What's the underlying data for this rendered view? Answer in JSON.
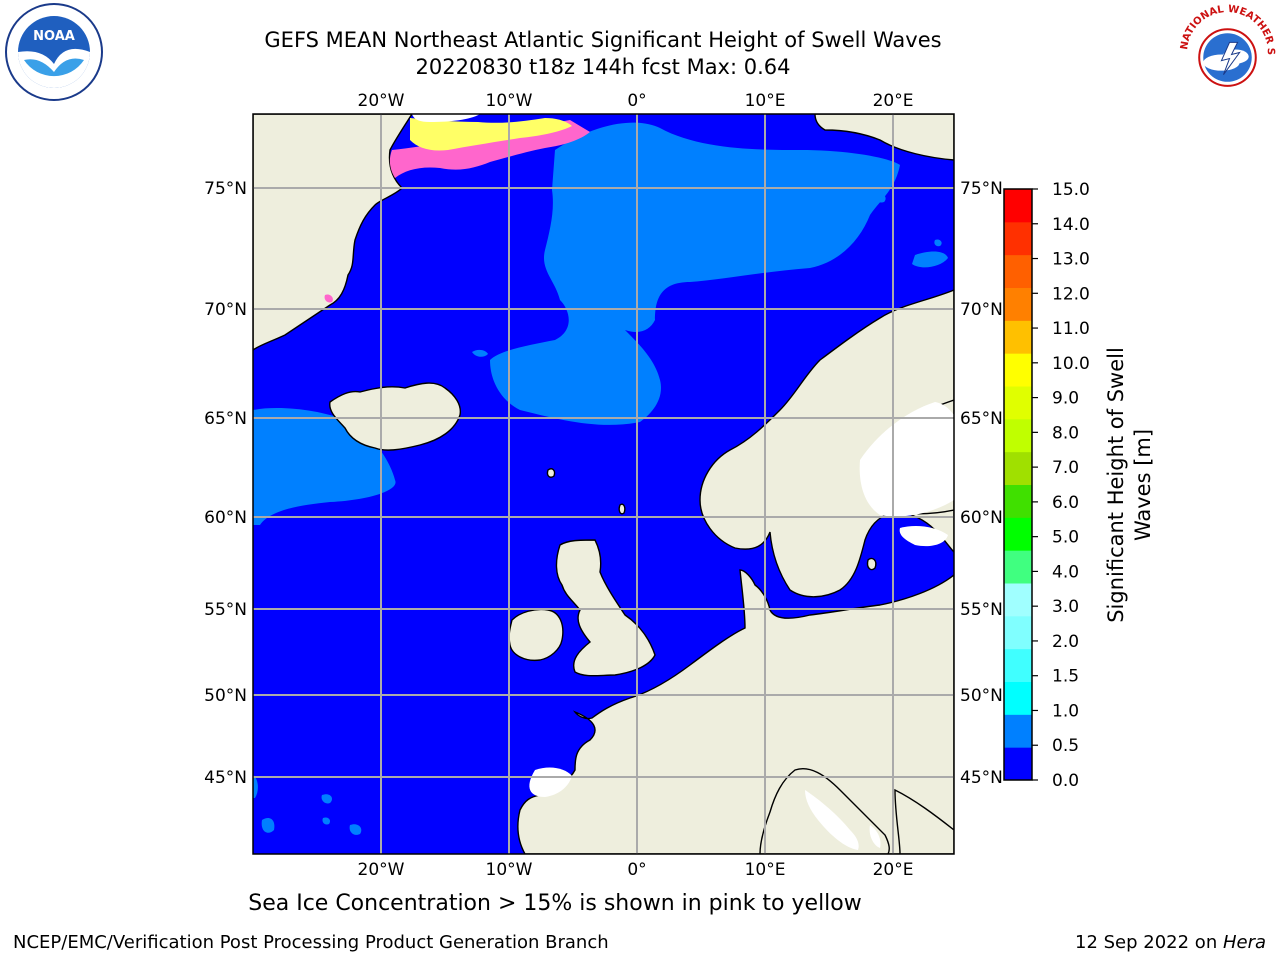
{
  "header": {
    "title_line1": "GEFS MEAN Northeast Atlantic Significant Height of Swell Waves",
    "title_line2": "20220830 t18z 144h fcst   Max: 0.64"
  },
  "logos": {
    "left": "noaa-logo",
    "left_text": "NOAA",
    "right": "nws-logo",
    "right_text": "NATIONAL WEATHER SERVICE"
  },
  "map": {
    "lon_labels_top": [
      "20°W",
      "10°W",
      "0°",
      "10°E",
      "20°E"
    ],
    "lon_labels_bottom": [
      "20°W",
      "10°W",
      "0°",
      "10°E",
      "20°E"
    ],
    "lat_labels_left": [
      "75°N",
      "70°N",
      "65°N",
      "60°N",
      "55°N",
      "50°N",
      "45°N"
    ],
    "lat_labels_right": [
      "75°N",
      "70°N",
      "65°N",
      "60°N",
      "55°N",
      "50°N",
      "45°N"
    ],
    "colors": {
      "ocean_low": "#0000ff",
      "ocean_mid": "#0080ff",
      "land": "#eeeedd",
      "grid": "#aaaaaa",
      "ice": "#ff66cc"
    }
  },
  "colorbar": {
    "tick_labels": [
      "0.0",
      "0.5",
      "1.0",
      "1.5",
      "2.0",
      "3.0",
      "4.0",
      "5.0",
      "6.0",
      "7.0",
      "8.0",
      "9.0",
      "10.0",
      "11.0",
      "12.0",
      "13.0",
      "14.0",
      "15.0"
    ],
    "colors": [
      "#0000ff",
      "#0080ff",
      "#00ffff",
      "#40ffff",
      "#80ffff",
      "#a0ffff",
      "#40ff80",
      "#00ff00",
      "#40e000",
      "#a0e000",
      "#c0ff00",
      "#e0ff00",
      "#ffff00",
      "#ffc000",
      "#ff8000",
      "#ff6000",
      "#ff3000",
      "#ff0000"
    ],
    "label_line1": "Significant Height of Swell",
    "label_line2": "Waves [m]"
  },
  "caption": "Sea Ice Concentration > 15% is shown in pink to yellow",
  "footer": {
    "left": "NCEP/EMC/Verification Post Processing Product Generation Branch",
    "right_prefix": "12 Sep 2022 on ",
    "right_host": "Hera"
  }
}
